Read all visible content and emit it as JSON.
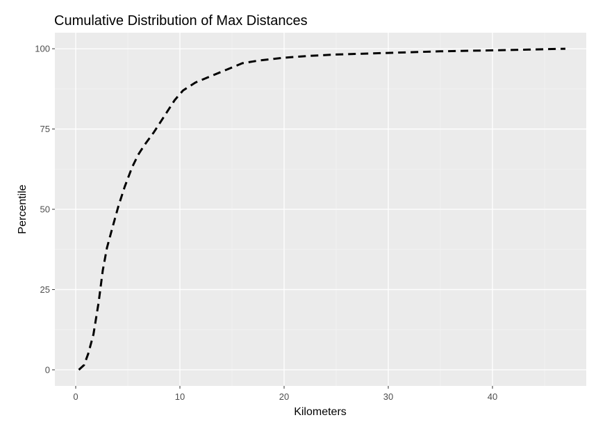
{
  "chart_data": {
    "type": "line",
    "title": "Cumulative Distribution of Max Distances",
    "xlabel": "Kilometers",
    "ylabel": "Percentile",
    "xlim": [
      -2.0,
      49.0
    ],
    "ylim": [
      -5.0,
      105.0
    ],
    "x_ticks": [
      0,
      10,
      20,
      30,
      40
    ],
    "x_tick_labels": [
      "0",
      "10",
      "20",
      "30",
      "40"
    ],
    "y_ticks": [
      0,
      25,
      50,
      75,
      100
    ],
    "y_tick_labels": [
      "0",
      "25",
      "50",
      "75",
      "100"
    ],
    "grid": true,
    "legend": "none",
    "series": [
      {
        "line_style": "dashed",
        "color": "#000000",
        "x": [
          0.3,
          0.8,
          1.2,
          1.7,
          2.2,
          2.6,
          3.0,
          3.5,
          4.1,
          4.7,
          5.4,
          6.0,
          6.6,
          7.5,
          8.5,
          9.5,
          10.3,
          11.5,
          13.0,
          14.5,
          16.0,
          17.5,
          20.0,
          22.5,
          25.0,
          30.0,
          35.0,
          40.0,
          43.0,
          45.0,
          47.0
        ],
        "y": [
          0,
          1.5,
          5,
          11,
          21,
          31,
          38,
          44,
          51,
          57,
          63,
          67,
          70,
          74,
          79,
          84,
          87,
          89.5,
          91.5,
          93.5,
          95.5,
          96.3,
          97.2,
          97.8,
          98.2,
          98.7,
          99.2,
          99.5,
          99.7,
          99.85,
          100
        ]
      }
    ]
  },
  "colors": {
    "panel_background": "#ebebeb",
    "grid_major": "#ffffff",
    "grid_minor": "#f3f3f3",
    "tick_text": "#4d4d4d",
    "tick_mark": "#333333"
  }
}
